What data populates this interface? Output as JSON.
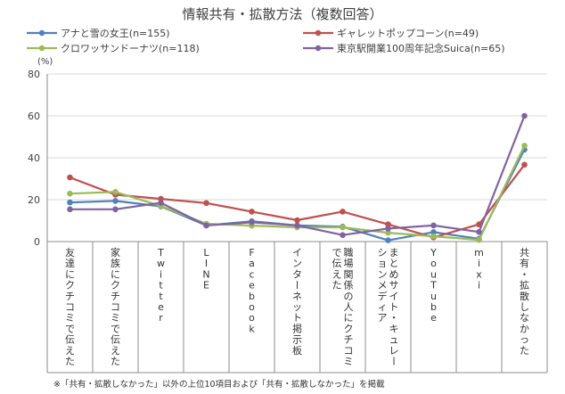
{
  "chart_data": {
    "type": "line",
    "title": "情報共有・拡散方法（複数回答）",
    "y_unit": "(%)",
    "ylim": [
      0,
      80
    ],
    "yticks": [
      "0",
      "20",
      "40",
      "60",
      "80"
    ],
    "grid": true,
    "legend_position": "top",
    "categories": [
      "友達にクチコミで伝えた",
      "家族にクチコミで伝えた",
      "Twitter",
      "LINE",
      "Facebook",
      "インターネット掲示板",
      "職場関係の人にクチコミで伝えた",
      "まとめサイト・キュレーションメディア",
      "YouTube",
      "mixi",
      "共有・拡散しなかった"
    ],
    "series": [
      {
        "name": "アナと雪の女王(n=155)",
        "color": "#4F81BD",
        "values": [
          18.7,
          19.4,
          16.8,
          7.7,
          9.7,
          7.7,
          7.1,
          0.6,
          4.5,
          1.3,
          43.9
        ]
      },
      {
        "name": "ギャレットポップコーン(n=49)",
        "color": "#C0504D",
        "values": [
          30.6,
          22.4,
          20.4,
          18.4,
          14.3,
          10.2,
          14.3,
          8.2,
          2.0,
          8.2,
          36.7
        ]
      },
      {
        "name": "クロワッサンドーナツ(n=118)",
        "color": "#9BBB59",
        "values": [
          22.9,
          23.7,
          17.0,
          8.5,
          7.6,
          6.8,
          6.8,
          4.2,
          2.5,
          0.8,
          45.8
        ]
      },
      {
        "name": "東京駅開業100周年記念Suica(n=65)",
        "color": "#8064A2",
        "values": [
          15.4,
          15.4,
          18.5,
          7.7,
          9.2,
          7.7,
          3.1,
          6.2,
          7.7,
          4.6,
          60.0
        ]
      }
    ],
    "footnote": "※「共有・拡散しなかった」以外の上位10項目および「共有・拡散しなかった」を掲載"
  }
}
